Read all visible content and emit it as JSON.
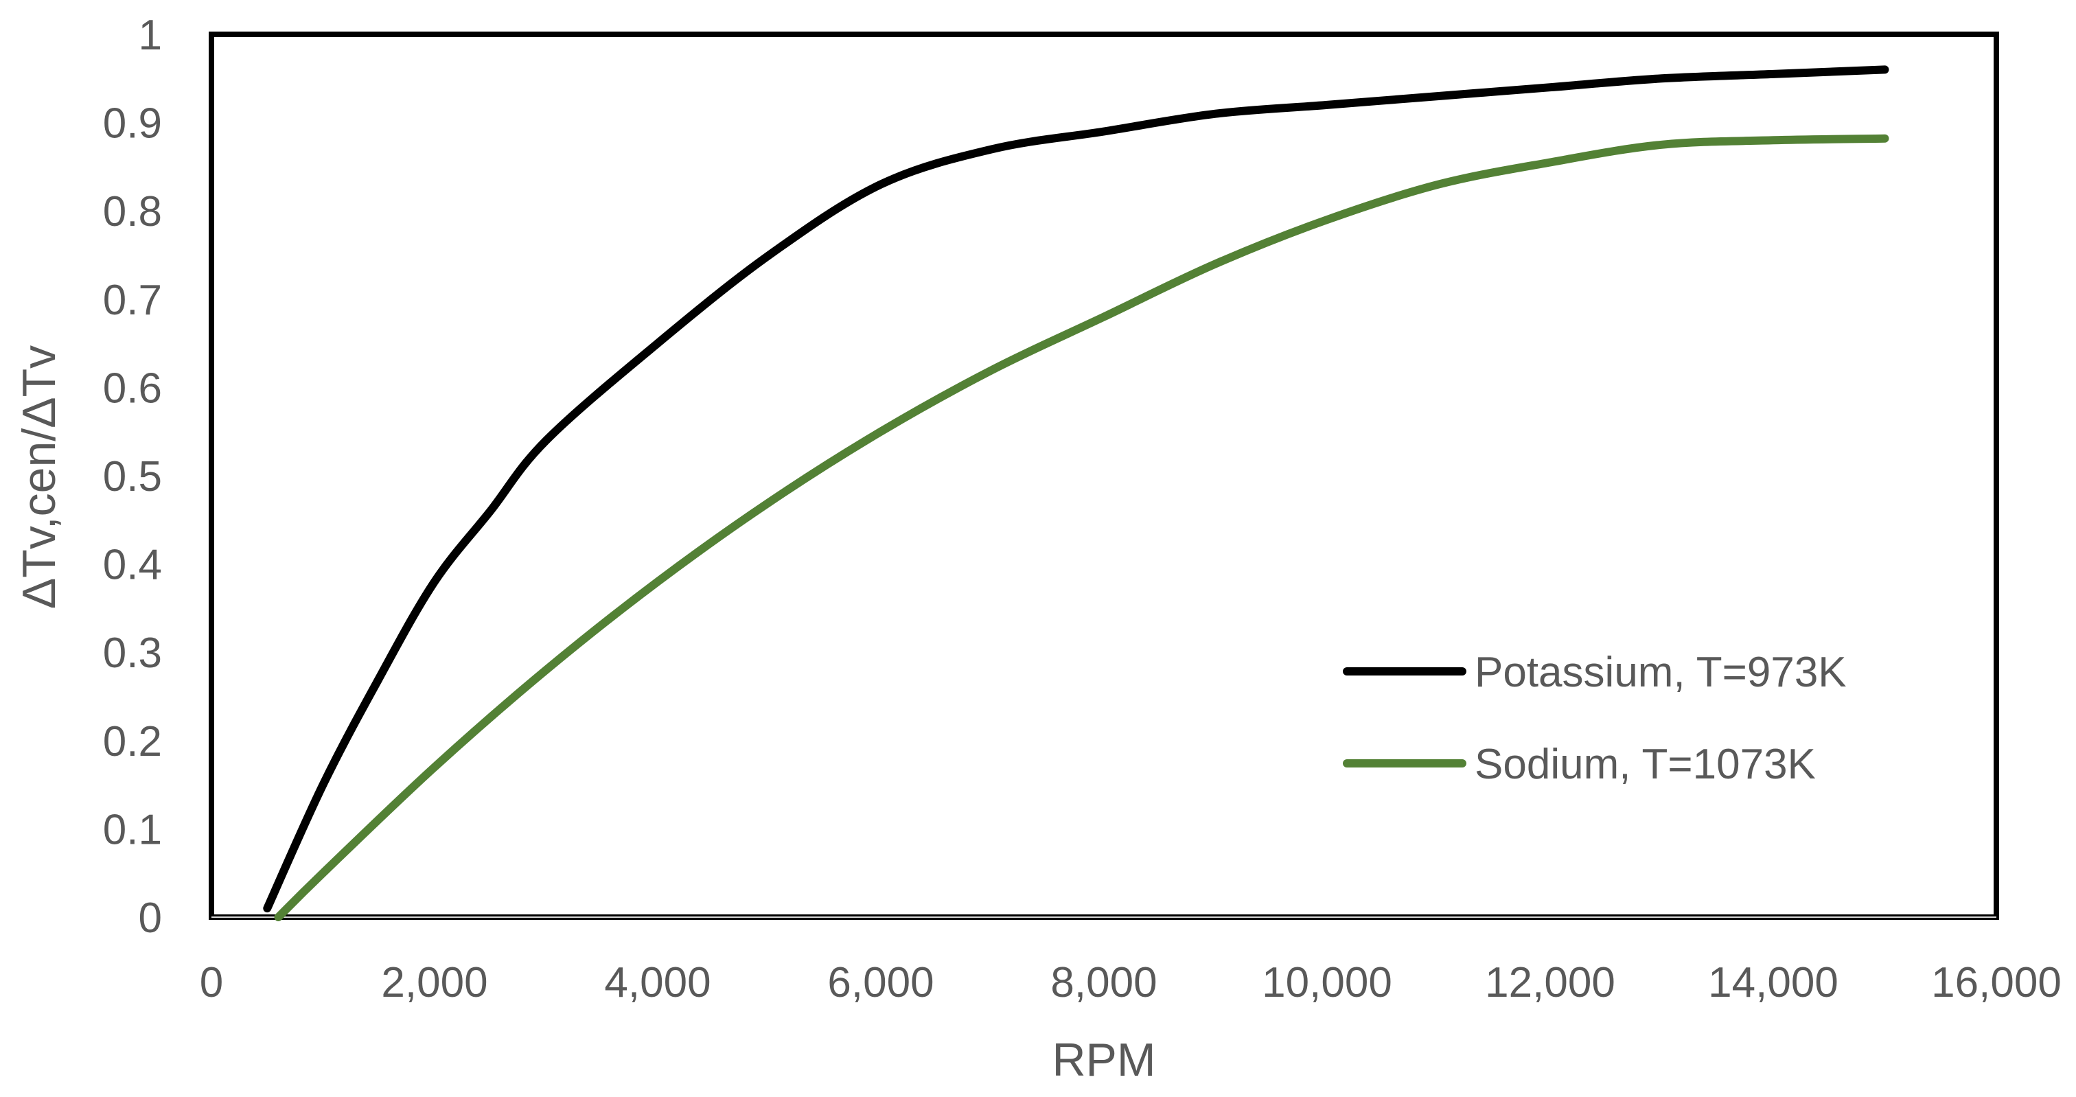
{
  "chart_data": {
    "type": "line",
    "title": "",
    "xlabel": "RPM",
    "ylabel": "ΔTv,cen/ΔTv",
    "xlim": [
      0,
      16000
    ],
    "ylim": [
      0,
      1
    ],
    "x_ticks": [
      0,
      2000,
      4000,
      6000,
      8000,
      10000,
      12000,
      14000,
      16000
    ],
    "x_tick_labels": [
      "0",
      "2,000",
      "4,000",
      "6,000",
      "8,000",
      "10,000",
      "12,000",
      "14,000",
      "16,000"
    ],
    "y_ticks": [
      0,
      0.1,
      0.2,
      0.3,
      0.4,
      0.5,
      0.6,
      0.7,
      0.8,
      0.9,
      1
    ],
    "y_tick_labels": [
      "0",
      "0.1",
      "0.2",
      "0.3",
      "0.4",
      "0.5",
      "0.6",
      "0.7",
      "0.8",
      "0.9",
      "1"
    ],
    "grid": false,
    "legend_position": "bottom-right",
    "series": [
      {
        "name": "Potassium, T=973K",
        "color": "#000000",
        "x": [
          500,
          1000,
          1500,
          2000,
          2500,
          3000,
          4000,
          5000,
          6000,
          7000,
          8000,
          9000,
          10000,
          11000,
          12000,
          13000,
          14000,
          15000
        ],
        "y": [
          0.01,
          0.15,
          0.27,
          0.38,
          0.46,
          0.54,
          0.65,
          0.75,
          0.83,
          0.87,
          0.89,
          0.91,
          0.92,
          0.93,
          0.94,
          0.95,
          0.955,
          0.96
        ]
      },
      {
        "name": "Sodium, T=1073K",
        "color": "#538135",
        "x": [
          600,
          1000,
          2000,
          3000,
          4000,
          5000,
          6000,
          7000,
          8000,
          9000,
          10000,
          11000,
          12000,
          13000,
          14000,
          15000
        ],
        "y": [
          0,
          0.05,
          0.17,
          0.28,
          0.38,
          0.47,
          0.55,
          0.62,
          0.68,
          0.74,
          0.79,
          0.83,
          0.855,
          0.875,
          0.88,
          0.882
        ]
      }
    ]
  }
}
